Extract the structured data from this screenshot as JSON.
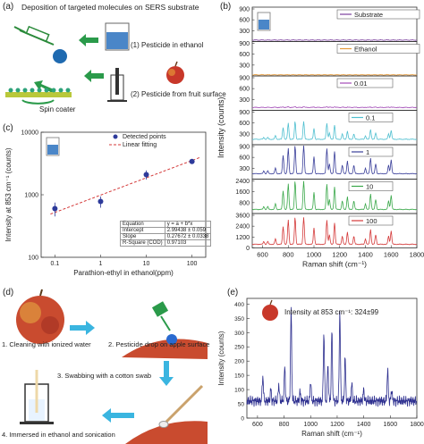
{
  "panels": {
    "a": {
      "tag": "(a)",
      "title": "Deposition of targeted molecules on SERS substrate",
      "step1": "(1) Pesticide in ethanol",
      "step2": "(2) Pesticide from fruit surface",
      "spin_coater": "Spin coater"
    },
    "b": {
      "tag": "(b)",
      "ylabel": "Intensity (counts)",
      "xlabel": "Raman shift (cm⁻¹)"
    },
    "c": {
      "tag": "(c)",
      "legend_points": "Detected points",
      "legend_fit": "Linear fitting",
      "fit_table": [
        [
          "Equation",
          "y = a + b*x"
        ],
        [
          "Intercept",
          "2.99438 ± 0.059"
        ],
        [
          "Slope",
          "0.27672 ± 0.0338"
        ],
        [
          "R-Square (COD)",
          "0.97103"
        ]
      ]
    },
    "d": {
      "tag": "(d)",
      "step1": "1. Cleaning with ionized water",
      "step2": "2. Pesticide drop on apple surface",
      "step3": "3. Swabbing with a cotton swab",
      "step4": "4. Immersed in ethanol and sonication"
    },
    "e": {
      "tag": "(e)",
      "annotation": "Intensity at 853 cm⁻¹: 324±99"
    }
  },
  "chart_data": [
    {
      "id": "b",
      "type": "line",
      "xlabel": "Raman shift (cm⁻¹)",
      "ylabel": "Intensity (counts)",
      "xlim": [
        520,
        1800
      ],
      "xticks": [
        600,
        800,
        1000,
        1200,
        1400,
        1600,
        1800
      ],
      "peaks_cm": [
        610,
        640,
        700,
        760,
        800,
        853,
        920,
        1000,
        1100,
        1120,
        1160,
        1220,
        1260,
        1310,
        1400,
        1440,
        1480,
        1580,
        1600
      ],
      "series": [
        {
          "name": "Substrate",
          "color": "#7b3f9e",
          "ylim": [
            0,
            900
          ],
          "yticks": [
            0,
            300,
            600,
            900
          ],
          "baseline": 40,
          "peak_height": 0
        },
        {
          "name": "Ethanol",
          "color": "#e69a3a",
          "ylim": [
            0,
            900
          ],
          "yticks": [
            0,
            300,
            600,
            900
          ],
          "baseline": 30,
          "peak_height": 0
        },
        {
          "name": "0.01",
          "color": "#a24bb6",
          "ylim": [
            0,
            900
          ],
          "yticks": [
            0,
            300,
            600,
            900
          ],
          "baseline": 80,
          "peak_height": 25
        },
        {
          "name": "0.1",
          "color": "#4fbfd0",
          "ylim": [
            0,
            900
          ],
          "yticks": [
            0,
            300,
            600,
            900
          ],
          "baseline": 150,
          "peak_height": 500
        },
        {
          "name": "1",
          "color": "#3a3f9a",
          "ylim": [
            0,
            900
          ],
          "yticks": [
            0,
            300,
            600,
            900
          ],
          "baseline": 150,
          "peak_height": 780
        },
        {
          "name": "10",
          "color": "#3aa84a",
          "ylim": [
            0,
            2400
          ],
          "yticks": [
            0,
            800,
            1600,
            2400
          ],
          "baseline": 300,
          "peak_height": 2100
        },
        {
          "name": "100",
          "color": "#d43a3a",
          "ylim": [
            0,
            3600
          ],
          "yticks": [
            0,
            1200,
            2400,
            3600
          ],
          "baseline": 400,
          "peak_height": 3000
        }
      ]
    },
    {
      "id": "c",
      "type": "scatter",
      "xlabel": "Parathion-ethyl in ethanol(ppm)",
      "ylabel": "Intensity at 853 cm⁻¹ (counts)",
      "xscale": "log",
      "yscale": "log",
      "xlim": [
        0.05,
        200
      ],
      "ylim": [
        100,
        10000
      ],
      "xticks": [
        0.1,
        1,
        10,
        100
      ],
      "xtick_labels": [
        "0.1",
        "1",
        "10",
        "100"
      ],
      "yticks": [
        100,
        1000,
        10000
      ],
      "ytick_labels": [
        "100",
        "1000",
        "10000"
      ],
      "points": [
        {
          "x": 0.1,
          "y": 600,
          "err": 150
        },
        {
          "x": 1,
          "y": 780,
          "err": 160
        },
        {
          "x": 10,
          "y": 2100,
          "err": 350
        },
        {
          "x": 100,
          "y": 3400,
          "err": 150
        }
      ],
      "fit": {
        "intercept": 2.99438,
        "slope": 0.27672
      }
    },
    {
      "id": "e",
      "type": "line",
      "xlabel": "Raman shift (cm⁻¹)",
      "ylabel": "Intensity (counts)",
      "xlim": [
        520,
        1800
      ],
      "ylim": [
        0,
        420
      ],
      "xticks": [
        600,
        800,
        1000,
        1200,
        1400,
        1600,
        1800
      ],
      "yticks": [
        0,
        50,
        100,
        150,
        200,
        250,
        300,
        350,
        400
      ],
      "series": [
        {
          "name": "",
          "color": "#2d2f8f",
          "baseline": 60,
          "peaks": [
            [
              640,
              90
            ],
            [
              700,
              40
            ],
            [
              760,
              60
            ],
            [
              805,
              120
            ],
            [
              853,
              320
            ],
            [
              920,
              30
            ],
            [
              1000,
              70
            ],
            [
              1100,
              240
            ],
            [
              1130,
              130
            ],
            [
              1160,
              250
            ],
            [
              1220,
              320
            ],
            [
              1260,
              150
            ],
            [
              1310,
              60
            ],
            [
              1400,
              40
            ],
            [
              1580,
              110
            ],
            [
              1610,
              40
            ]
          ]
        }
      ]
    }
  ]
}
